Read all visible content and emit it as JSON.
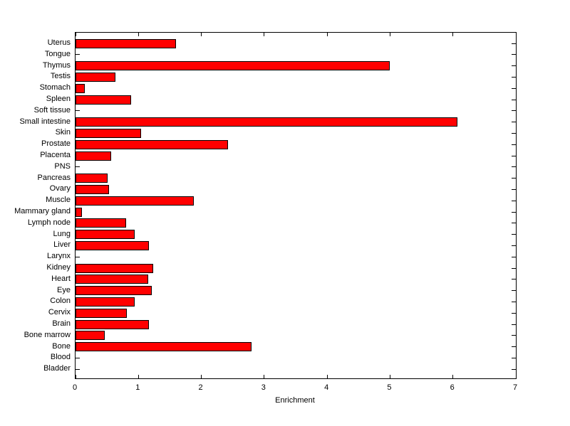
{
  "chart_data": {
    "type": "bar",
    "orientation": "horizontal",
    "title": "",
    "xlabel": "Enrichment",
    "ylabel": "",
    "xlim": [
      0,
      7
    ],
    "x_ticks": [
      0,
      1,
      2,
      3,
      4,
      5,
      6,
      7
    ],
    "grid": false,
    "legend": "none",
    "bar_color": "#ff0000",
    "bar_edge_color": "#000000",
    "axis_color": "#000000",
    "background_color": "#ffffff",
    "categories": [
      "Uterus",
      "Tongue",
      "Thymus",
      "Testis",
      "Stomach",
      "Spleen",
      "Soft tissue",
      "Small intestine",
      "Skin",
      "Prostate",
      "Placenta",
      "PNS",
      "Pancreas",
      "Ovary",
      "Muscle",
      "Mammary gland",
      "Lymph node",
      "Lung",
      "Liver",
      "Larynx",
      "Kidney",
      "Heart",
      "Eye",
      "Colon",
      "Cervix",
      "Brain",
      "Bone marrow",
      "Bone",
      "Blood",
      "Bladder"
    ],
    "values": [
      1.6,
      0,
      5.0,
      0.63,
      0.15,
      0.88,
      0,
      6.07,
      1.04,
      2.42,
      0.57,
      0,
      0.51,
      0.53,
      1.88,
      0.1,
      0.8,
      0.94,
      1.17,
      0,
      1.23,
      1.15,
      1.21,
      0.94,
      0.82,
      1.17,
      0.46,
      2.8,
      0,
      0
    ]
  }
}
